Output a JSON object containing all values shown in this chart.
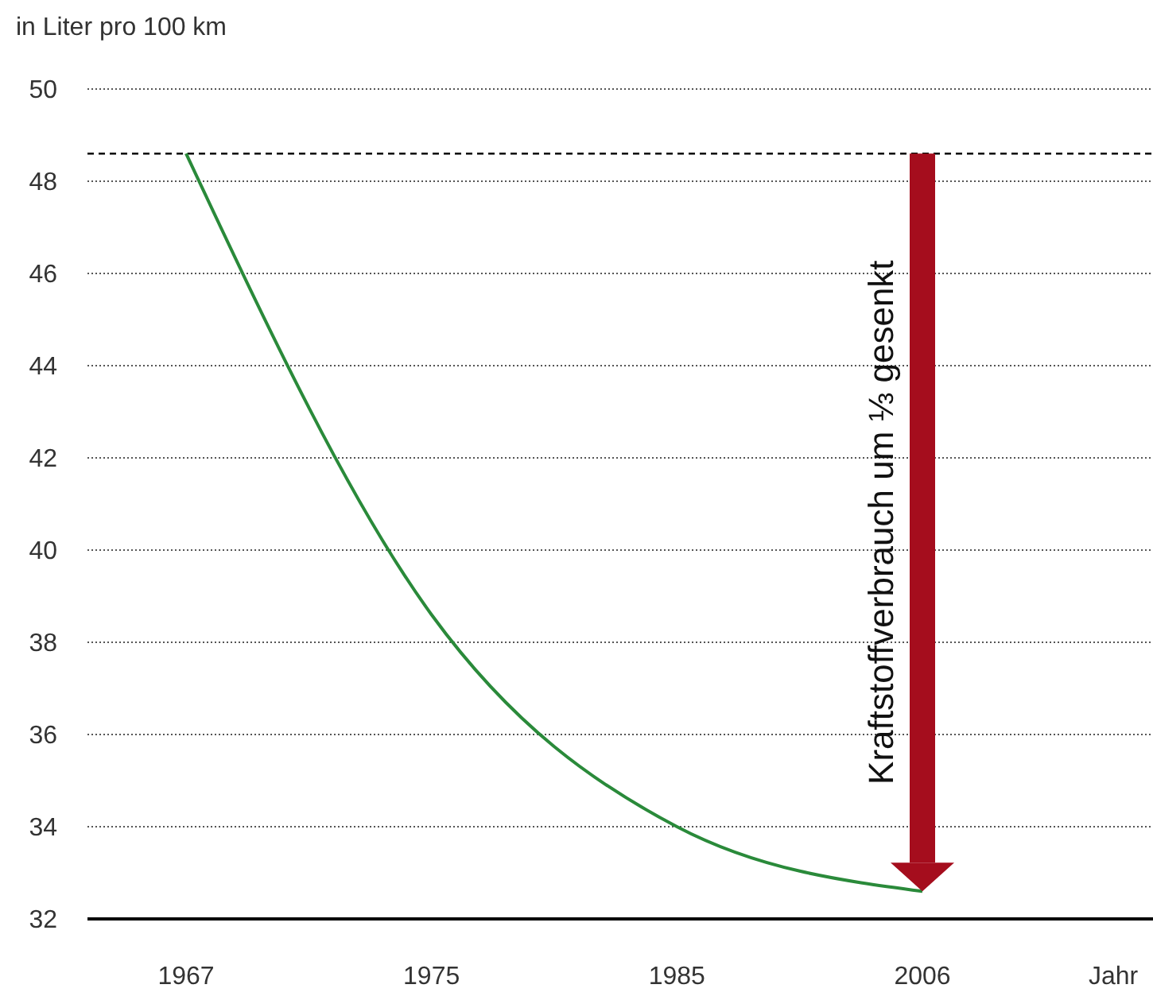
{
  "chart_data": {
    "type": "line",
    "ylabel": "in Liter pro 100 km",
    "xlabel": "Jahr",
    "categories": [
      "1967",
      "1975",
      "1985",
      "2006"
    ],
    "series": [
      {
        "color": "#2a8a3a",
        "values": [
          48.6,
          38.6,
          34,
          32.6
        ]
      }
    ],
    "ylim": [
      32,
      50
    ],
    "yticks": [
      32,
      34,
      36,
      38,
      40,
      42,
      44,
      46,
      48,
      50
    ],
    "grid": "y",
    "marker": "none",
    "line_style": "solid",
    "ref_lines": [
      {
        "axis": "y",
        "value": 48.6,
        "color": "#000000",
        "line_style": "dashed"
      }
    ],
    "annotations": [
      "Kraftstoffverbrauch um ⅓ gesenkt"
    ]
  }
}
